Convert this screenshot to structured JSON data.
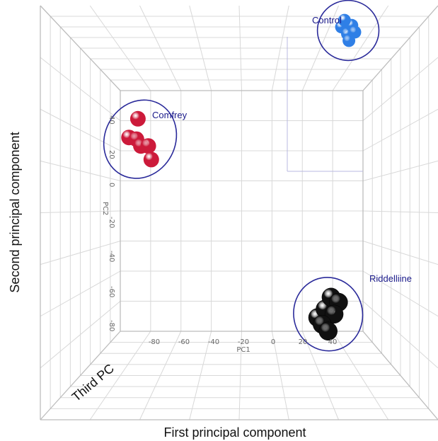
{
  "chart_data": {
    "type": "scatter",
    "dimensions": 3,
    "title": "",
    "xlabel": "First principal component",
    "ylabel": "Second principal component",
    "zlabel": "Third PC",
    "inner_axes": {
      "x_label": "PC1",
      "y_label": "PC2",
      "x_ticks": [
        "-80",
        "-60",
        "-40",
        "-20",
        "0",
        "20",
        "40"
      ],
      "y_ticks": [
        "40",
        "20",
        "0",
        "-20",
        "-40",
        "-60",
        "-80"
      ]
    },
    "xlim": [
      -100,
      60
    ],
    "ylim": [
      -90,
      50
    ],
    "grid": true,
    "series": [
      {
        "name": "Control",
        "color": "#2f7fe6",
        "points": [
          {
            "x": 46,
            "y": 92,
            "z": 0
          },
          {
            "x": 50,
            "y": 88,
            "z": 0
          },
          {
            "x": 53,
            "y": 93,
            "z": 0
          },
          {
            "x": 48,
            "y": 96,
            "z": 0
          },
          {
            "x": 55,
            "y": 89,
            "z": 0
          },
          {
            "x": 51,
            "y": 84,
            "z": 0
          }
        ]
      },
      {
        "name": "Comfrey",
        "color": "#cc1a3a",
        "points": [
          {
            "x": -97,
            "y": 27,
            "z": 0
          },
          {
            "x": -91,
            "y": 38,
            "z": 0
          },
          {
            "x": -92,
            "y": 26,
            "z": 0
          },
          {
            "x": -89,
            "y": 22,
            "z": 0
          },
          {
            "x": -84,
            "y": 22,
            "z": 0
          },
          {
            "x": -82,
            "y": 14,
            "z": 0
          }
        ]
      },
      {
        "name": "Riddelliine",
        "color": "#111111",
        "points": [
          {
            "x": 30,
            "y": -79,
            "z": 0
          },
          {
            "x": 35,
            "y": -74,
            "z": 0
          },
          {
            "x": 39,
            "y": -67,
            "z": 0
          },
          {
            "x": 44,
            "y": -70,
            "z": 0
          },
          {
            "x": 41,
            "y": -77,
            "z": 0
          },
          {
            "x": 33,
            "y": -83,
            "z": 0
          },
          {
            "x": 37,
            "y": -87,
            "z": 0
          }
        ]
      }
    ]
  }
}
